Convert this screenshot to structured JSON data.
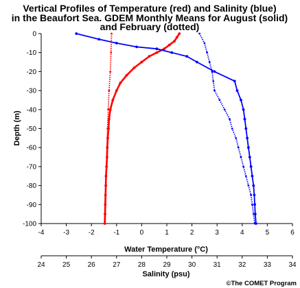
{
  "chart_data": {
    "type": "line",
    "title": [
      "Vertical Profiles of Temperature (red) and Salinity (blue)",
      "in the Beaufort Sea. GDEM Monthly Means for August (solid)",
      "and February (dotted)"
    ],
    "ylabel": "Depth (m)",
    "xlabel_temperature": "Water Temperature (°C)",
    "xlabel_salinity": "Salinity (psu)",
    "credit": "©The COMET Program",
    "ylim": [
      -100,
      0
    ],
    "yticks": [
      0,
      -10,
      -20,
      -30,
      -40,
      -50,
      -60,
      -70,
      -80,
      -90,
      -100
    ],
    "temperature_axis": {
      "lim": [
        -4,
        6
      ],
      "ticks": [
        -4,
        -3,
        -2,
        -1,
        0,
        1,
        2,
        3,
        4,
        5,
        6
      ]
    },
    "salinity_axis": {
      "lim": [
        24,
        34
      ],
      "ticks": [
        24,
        25,
        26,
        27,
        28,
        29,
        30,
        31,
        32,
        33,
        34
      ]
    },
    "colors": {
      "temperature": "#ff0000",
      "salinity": "#0000ff",
      "axes": "#000000"
    },
    "grid": false,
    "series": [
      {
        "name": "Temperature August",
        "axis": "temperature",
        "style": "solid",
        "color": "#ff0000",
        "points": [
          [
            1.5,
            0
          ],
          [
            1.4,
            -2
          ],
          [
            1.3,
            -4
          ],
          [
            1.1,
            -6
          ],
          [
            0.9,
            -8
          ],
          [
            0.6,
            -10
          ],
          [
            0.3,
            -12
          ],
          [
            0.0,
            -15
          ],
          [
            -0.3,
            -18
          ],
          [
            -0.6,
            -22
          ],
          [
            -0.85,
            -26
          ],
          [
            -1.0,
            -30
          ],
          [
            -1.15,
            -35
          ],
          [
            -1.25,
            -40
          ],
          [
            -1.3,
            -45
          ],
          [
            -1.32,
            -50
          ],
          [
            -1.35,
            -55
          ],
          [
            -1.37,
            -60
          ],
          [
            -1.38,
            -65
          ],
          [
            -1.4,
            -70
          ],
          [
            -1.42,
            -75
          ],
          [
            -1.43,
            -80
          ],
          [
            -1.44,
            -85
          ],
          [
            -1.45,
            -90
          ],
          [
            -1.46,
            -95
          ],
          [
            -1.47,
            -100
          ]
        ]
      },
      {
        "name": "Temperature February",
        "axis": "temperature",
        "style": "dotted",
        "color": "#ff0000",
        "points": [
          [
            -1.2,
            0
          ],
          [
            -1.22,
            -10
          ],
          [
            -1.25,
            -20
          ],
          [
            -1.3,
            -30
          ],
          [
            -1.33,
            -40
          ],
          [
            -1.36,
            -50
          ],
          [
            -1.38,
            -60
          ],
          [
            -1.4,
            -70
          ],
          [
            -1.42,
            -80
          ],
          [
            -1.44,
            -90
          ],
          [
            -1.45,
            -100
          ]
        ]
      },
      {
        "name": "Salinity August",
        "axis": "salinity",
        "style": "solid",
        "color": "#0000ff",
        "points": [
          [
            25.4,
            0
          ],
          [
            26.3,
            -3
          ],
          [
            27.0,
            -5
          ],
          [
            27.8,
            -7
          ],
          [
            28.6,
            -8
          ],
          [
            29.2,
            -10
          ],
          [
            29.8,
            -12
          ],
          [
            30.2,
            -15
          ],
          [
            30.9,
            -20
          ],
          [
            31.7,
            -25
          ],
          [
            31.8,
            -30
          ],
          [
            31.95,
            -35
          ],
          [
            32.05,
            -40
          ],
          [
            32.1,
            -45
          ],
          [
            32.15,
            -50
          ],
          [
            32.2,
            -55
          ],
          [
            32.25,
            -60
          ],
          [
            32.3,
            -65
          ],
          [
            32.35,
            -70
          ],
          [
            32.4,
            -75
          ],
          [
            32.45,
            -80
          ],
          [
            32.48,
            -85
          ],
          [
            32.5,
            -90
          ],
          [
            32.52,
            -95
          ],
          [
            32.55,
            -100
          ]
        ]
      },
      {
        "name": "Salinity February",
        "axis": "salinity",
        "style": "dotted",
        "color": "#0000ff",
        "points": [
          [
            30.3,
            0
          ],
          [
            30.5,
            -5
          ],
          [
            30.6,
            -10
          ],
          [
            30.7,
            -15
          ],
          [
            30.8,
            -20
          ],
          [
            30.85,
            -25
          ],
          [
            30.9,
            -30
          ],
          [
            31.1,
            -35
          ],
          [
            31.3,
            -40
          ],
          [
            31.5,
            -45
          ],
          [
            31.6,
            -50
          ],
          [
            31.75,
            -55
          ],
          [
            31.85,
            -60
          ],
          [
            31.95,
            -65
          ],
          [
            32.05,
            -70
          ],
          [
            32.15,
            -75
          ],
          [
            32.25,
            -80
          ],
          [
            32.35,
            -85
          ],
          [
            32.4,
            -90
          ],
          [
            32.45,
            -95
          ],
          [
            32.5,
            -100
          ]
        ]
      }
    ]
  }
}
